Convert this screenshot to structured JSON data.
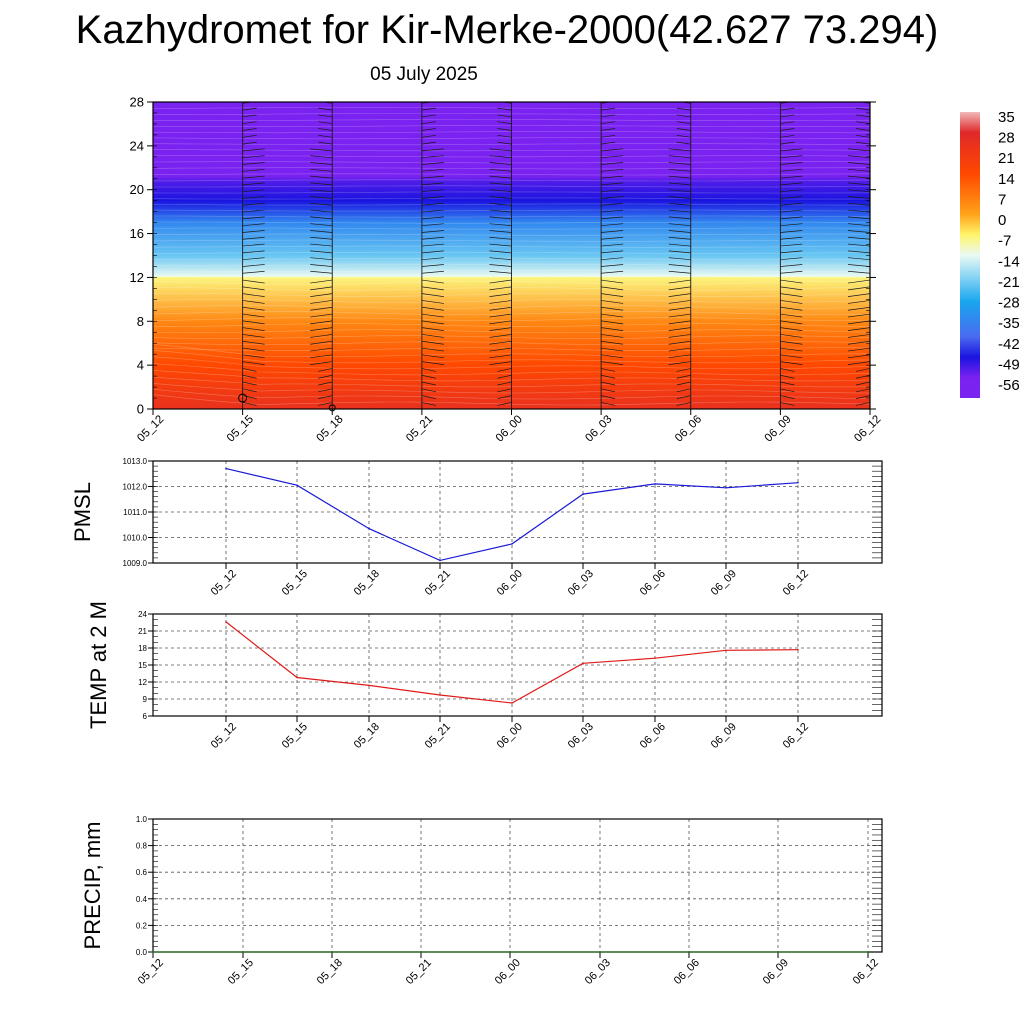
{
  "header": {
    "title": "Kazhydromet for Kir-Merke-2000(42.627 73.294)",
    "date": "05 July 2025"
  },
  "chart_data": [
    {
      "type": "heatmap",
      "name": "cross-section",
      "x": [
        "05_12",
        "05_15",
        "05_18",
        "05_21",
        "06_00",
        "06_03",
        "06_06",
        "06_09",
        "06_12"
      ],
      "ylim": [
        0,
        28
      ],
      "yticks": [
        0,
        4,
        8,
        12,
        16,
        20,
        24,
        28
      ],
      "colorbar": {
        "labels": [
          "35",
          "28",
          "21",
          "14",
          "7",
          "0",
          "-7",
          "-14",
          "-21",
          "-28",
          "-35",
          "-42",
          "-49",
          "-56"
        ],
        "stops": [
          {
            "v": 35,
            "c": "#f2b8b8"
          },
          {
            "v": 28,
            "c": "#e0282a"
          },
          {
            "v": 14,
            "c": "#ff4800"
          },
          {
            "v": 0,
            "c": "#ffa21a"
          },
          {
            "v": -7,
            "c": "#fff46a"
          },
          {
            "v": -14,
            "c": "#eafaf2"
          },
          {
            "v": -21,
            "c": "#8fd6f4"
          },
          {
            "v": -30,
            "c": "#19a6ee"
          },
          {
            "v": -42,
            "c": "#4a6af0"
          },
          {
            "v": -49,
            "c": "#1a14e0"
          },
          {
            "v": -56,
            "c": "#7a22f0"
          }
        ]
      },
      "profile": [
        {
          "h": 0,
          "t": 24
        },
        {
          "h": 4,
          "t": 14
        },
        {
          "h": 8,
          "t": 4
        },
        {
          "h": 12,
          "t": -8
        },
        {
          "h": 12.1,
          "t": -14
        },
        {
          "h": 14,
          "t": -24
        },
        {
          "h": 17,
          "t": -36
        },
        {
          "h": 19,
          "t": -49
        },
        {
          "h": 20.8,
          "t": -53
        },
        {
          "h": 21.2,
          "t": -57
        },
        {
          "h": 28,
          "t": -58
        }
      ]
    },
    {
      "type": "line",
      "ylabel": "PMSL",
      "x": [
        "05_12",
        "05_15",
        "05_18",
        "05_21",
        "06_00",
        "06_03",
        "06_06",
        "06_09",
        "06_12"
      ],
      "values": [
        1012.7,
        1012.05,
        1010.35,
        1009.1,
        1009.75,
        1011.7,
        1012.1,
        1011.95,
        1012.15
      ],
      "ylim": [
        1009.0,
        1013.0
      ],
      "yticks": [
        "1009.0",
        "1010.0",
        "1011.0",
        "1012.0",
        "1013.0"
      ],
      "color": "#1a1ad6"
    },
    {
      "type": "line",
      "ylabel": "TEMP at 2 M",
      "x": [
        "05_12",
        "05_15",
        "05_18",
        "05_21",
        "06_00",
        "06_03",
        "06_06",
        "06_09",
        "06_12"
      ],
      "values": [
        22.6,
        12.8,
        11.4,
        9.7,
        8.3,
        15.3,
        16.2,
        17.6,
        17.7
      ],
      "ylim": [
        6,
        24
      ],
      "yticks": [
        "6",
        "9",
        "12",
        "15",
        "18",
        "21",
        "24"
      ],
      "color": "#e01a1a"
    },
    {
      "type": "line",
      "ylabel": "PRECIP, mm",
      "x": [
        "05_12",
        "05_15",
        "05_18",
        "05_21",
        "06_00",
        "06_03",
        "06_06",
        "06_09",
        "06_12"
      ],
      "values": [
        0,
        0,
        0,
        0,
        0,
        0,
        0,
        0,
        0
      ],
      "ylim": [
        0,
        1.0
      ],
      "yticks": [
        "0.0",
        "0.2",
        "0.4",
        "0.6",
        "0.8",
        "1.0"
      ],
      "color": "#1a6a1a"
    }
  ]
}
